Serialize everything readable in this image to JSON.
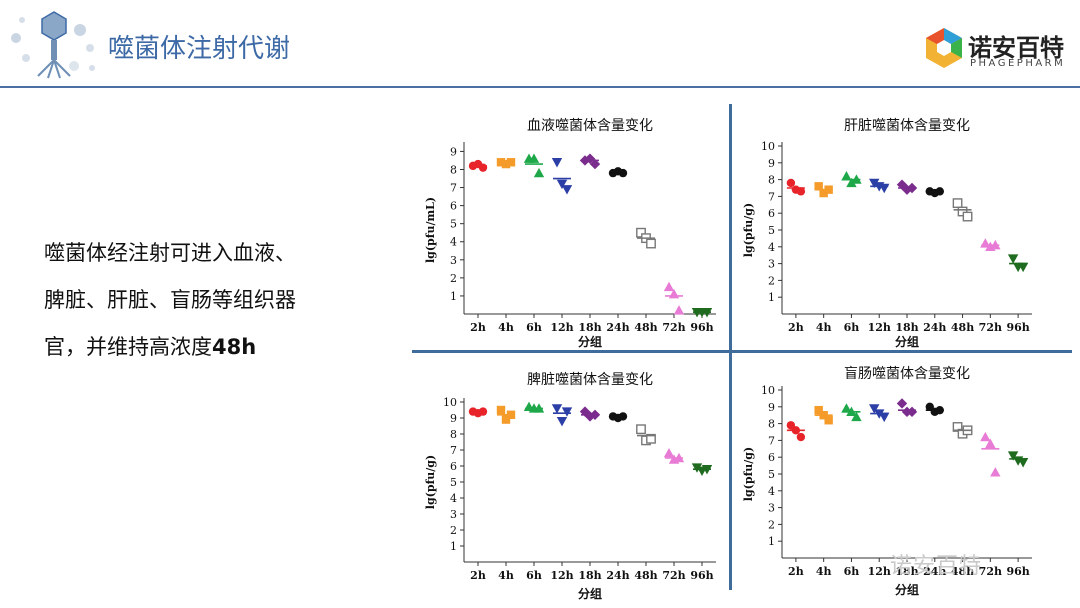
{
  "header": {
    "title": "噬菌体注射代谢",
    "brand_cn": "诺安百特",
    "brand_en": "PHAGEPHARM"
  },
  "body": {
    "line1": "噬菌体经注射可进入血液、",
    "line2": "脾脏、肝脏、盲肠等组织器",
    "line3_prefix": "官，并维持高浓度",
    "line3_bold": "48h"
  },
  "watermark": "诺安百特",
  "colors": {
    "accent": "#3d6aa6",
    "series": [
      "#e8242b",
      "#f59b2a",
      "#1fa84a",
      "#2b3fa6",
      "#7b2d8e",
      "#111111",
      "#777777",
      "#e87bd5",
      "#1f6b1f"
    ]
  },
  "chart_data": [
    {
      "type": "scatter",
      "title": "血液噬菌体含量变化",
      "xlabel": "分组",
      "ylabel": "lg(pfu/mL)",
      "categories": [
        "2h",
        "4h",
        "6h",
        "12h",
        "18h",
        "24h",
        "48h",
        "72h",
        "96h"
      ],
      "markers": [
        "circle",
        "square",
        "triangle",
        "triangle-down",
        "diamond",
        "circle",
        "square-open",
        "triangle",
        "triangle-down"
      ],
      "y_ticks": [
        1,
        2,
        3,
        4,
        5,
        6,
        7,
        8,
        9
      ],
      "ylim": [
        0,
        9.3
      ],
      "points": [
        [
          8.2,
          8.3,
          8.1
        ],
        [
          8.4,
          8.3,
          8.4
        ],
        [
          8.6,
          8.6,
          7.8
        ],
        [
          8.4,
          7.2,
          6.9
        ],
        [
          8.5,
          8.6,
          8.3
        ],
        [
          7.8,
          7.9,
          7.8
        ],
        [
          4.5,
          4.2,
          3.9
        ],
        [
          1.5,
          1.1,
          0.2
        ],
        [
          0.1,
          0.1,
          0.1
        ]
      ],
      "means": [
        8.2,
        8.4,
        8.3,
        7.5,
        8.5,
        7.8,
        4.2,
        1.0,
        0.1
      ]
    },
    {
      "type": "scatter",
      "title": "肝脏噬菌体含量变化",
      "xlabel": "分组",
      "ylabel": "lg(pfu/g)",
      "categories": [
        "2h",
        "4h",
        "6h",
        "12h",
        "18h",
        "24h",
        "48h",
        "72h",
        "96h"
      ],
      "markers": [
        "circle",
        "square",
        "triangle",
        "triangle-down",
        "diamond",
        "circle",
        "square-open",
        "triangle",
        "triangle-down"
      ],
      "y_ticks": [
        1,
        2,
        3,
        4,
        5,
        6,
        7,
        8,
        9,
        10
      ],
      "ylim": [
        0,
        10
      ],
      "points": [
        [
          7.8,
          7.4,
          7.3
        ],
        [
          7.6,
          7.2,
          7.4
        ],
        [
          8.2,
          7.8,
          8.0
        ],
        [
          7.8,
          7.6,
          7.5
        ],
        [
          7.7,
          7.4,
          7.5
        ],
        [
          7.3,
          7.2,
          7.3
        ],
        [
          6.6,
          6.1,
          5.8
        ],
        [
          4.2,
          4.0,
          4.1
        ],
        [
          3.3,
          2.8,
          2.8
        ]
      ],
      "means": [
        7.5,
        7.4,
        8.0,
        7.6,
        7.5,
        7.3,
        6.2,
        4.1,
        3.0
      ]
    },
    {
      "type": "scatter",
      "title": "脾脏噬菌体含量变化",
      "xlabel": "分组",
      "ylabel": "lg(pfu/g)",
      "categories": [
        "2h",
        "4h",
        "6h",
        "12h",
        "18h",
        "24h",
        "48h",
        "72h",
        "96h"
      ],
      "markers": [
        "circle",
        "square",
        "triangle",
        "triangle-down",
        "diamond",
        "circle",
        "square-open",
        "triangle",
        "triangle-down"
      ],
      "y_ticks": [
        1,
        2,
        3,
        4,
        5,
        6,
        7,
        8,
        9,
        10
      ],
      "ylim": [
        0,
        10
      ],
      "points": [
        [
          9.4,
          9.3,
          9.4
        ],
        [
          9.5,
          8.9,
          9.2
        ],
        [
          9.7,
          9.6,
          9.6
        ],
        [
          9.6,
          8.8,
          9.4
        ],
        [
          9.4,
          9.1,
          9.2
        ],
        [
          9.1,
          9.0,
          9.1
        ],
        [
          8.3,
          7.6,
          7.7
        ],
        [
          6.8,
          6.4,
          6.5
        ],
        [
          5.9,
          5.7,
          5.8
        ]
      ],
      "means": [
        9.4,
        9.2,
        9.6,
        9.3,
        9.2,
        9.1,
        7.9,
        6.5,
        5.8
      ]
    },
    {
      "type": "scatter",
      "title": "盲肠噬菌体含量变化",
      "xlabel": "分组",
      "ylabel": "lg(pfu/g)",
      "categories": [
        "2h",
        "4h",
        "6h",
        "12h",
        "18h",
        "24h",
        "48h",
        "72h",
        "96h"
      ],
      "markers": [
        "circle",
        "square",
        "triangle",
        "triangle-down",
        "diamond",
        "circle",
        "square-open",
        "triangle",
        "triangle-down"
      ],
      "y_ticks": [
        1,
        2,
        3,
        4,
        5,
        6,
        7,
        8,
        9,
        10
      ],
      "ylim": [
        0,
        10
      ],
      "points": [
        [
          7.9,
          7.6,
          7.2
        ],
        [
          8.8,
          8.5,
          8.2
        ],
        [
          8.9,
          8.7,
          8.4
        ],
        [
          8.9,
          8.6,
          8.4
        ],
        [
          9.2,
          8.7,
          8.7
        ],
        [
          9.0,
          8.7,
          8.8
        ],
        [
          7.8,
          7.4,
          7.6
        ],
        [
          7.2,
          6.8,
          5.1
        ],
        [
          6.1,
          5.8,
          5.7
        ]
      ],
      "means": [
        7.6,
        8.5,
        8.7,
        8.6,
        8.8,
        8.8,
        7.6,
        6.5,
        5.9
      ]
    }
  ]
}
